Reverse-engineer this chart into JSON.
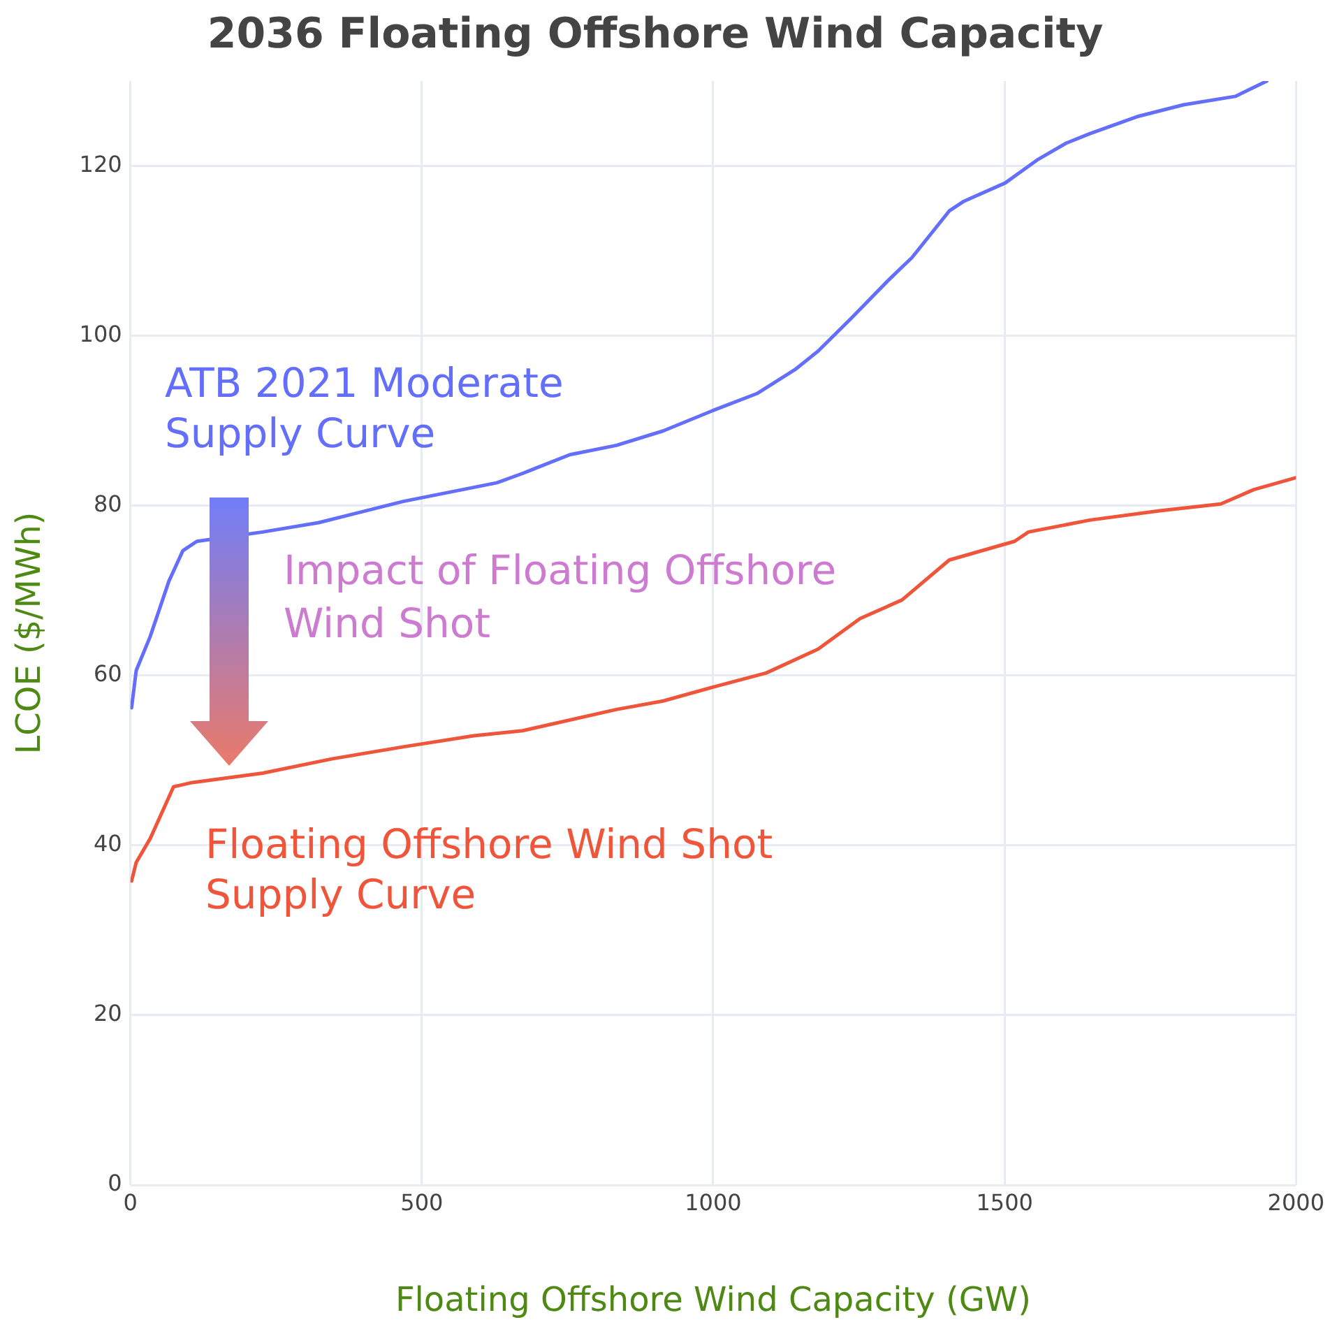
{
  "chart_data": {
    "type": "line",
    "title": "2036 Floating Offshore Wind Capacity",
    "xlabel": "Floating Offshore Wind Capacity (GW)",
    "ylabel": "LCOE ($/MWh)",
    "xlim": [
      0,
      2000
    ],
    "xticks": [
      0,
      500,
      1000,
      1500,
      2000
    ],
    "ylim": [
      0,
      130
    ],
    "yticks": [
      0,
      20,
      40,
      60,
      80,
      100,
      120
    ],
    "grid": true,
    "legend": false,
    "marker": "none",
    "line_style": "solid",
    "annotations": [
      "Impact of Floating Offshore Wind Shot"
    ],
    "series": [
      {
        "name": "ATB 2021 Moderate Supply Curve",
        "color": "#636efa",
        "x": [
          2,
          10,
          34,
          66,
          90,
          114,
          227,
          323,
          468,
          629,
          673,
          754,
          834,
          914,
          1003,
          1075,
          1140,
          1180,
          1236,
          1300,
          1324,
          1341,
          1405,
          1429,
          1501,
          1558,
          1606,
          1646,
          1727,
          1807,
          1896,
          1950
        ],
        "values": [
          56.2,
          60.6,
          64.6,
          71.1,
          74.7,
          75.8,
          76.9,
          78.0,
          80.5,
          82.7,
          83.8,
          86.0,
          87.1,
          88.8,
          91.3,
          93.2,
          96.0,
          98.2,
          102.0,
          106.5,
          108.1,
          109.2,
          114.7,
          115.8,
          118.0,
          120.8,
          122.7,
          123.8,
          125.8,
          127.2,
          128.2,
          130
        ]
      },
      {
        "name": "Floating Offshore Wind Shot Supply Curve",
        "color": "#ef553b",
        "x": [
          2,
          10,
          34,
          74,
          106,
          227,
          347,
          468,
          589,
          673,
          834,
          914,
          1003,
          1091,
          1180,
          1252,
          1324,
          1405,
          1517,
          1541,
          1646,
          1766,
          1871,
          1928,
          2000
        ],
        "values": [
          35.8,
          38.0,
          40.8,
          46.9,
          47.4,
          48.5,
          50.2,
          51.6,
          52.9,
          53.5,
          56.0,
          57.0,
          58.7,
          60.3,
          63.1,
          66.7,
          68.9,
          73.6,
          75.8,
          76.9,
          78.3,
          79.4,
          80.2,
          81.9,
          83.3
        ]
      }
    ]
  }
}
